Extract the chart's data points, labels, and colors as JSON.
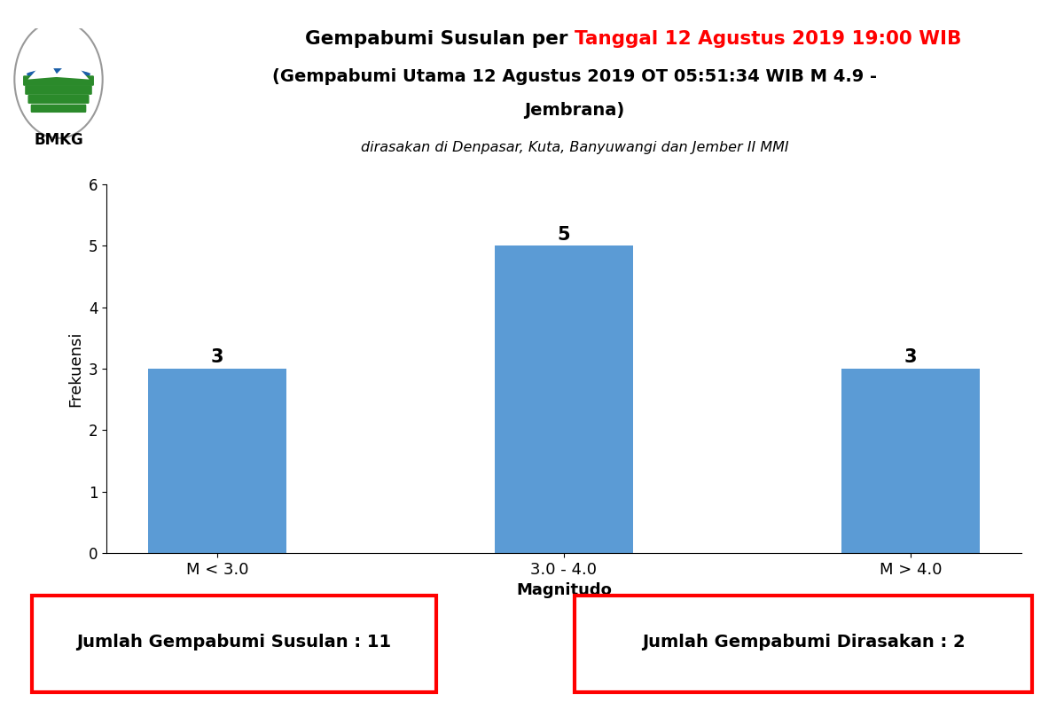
{
  "title_black": "Gempabumi Susulan per ",
  "title_red": "Tanggal 12 Agustus 2019 19:00 WIB",
  "subtitle1": "(Gempabumi Utama 12 Agustus 2019 OT 05:51:34 WIB M 4.9 -",
  "subtitle2": "Jembrana)",
  "subtitle3": "dirasakan di Denpasar, Kuta, Banyuwangi dan Jember II MMI",
  "categories": [
    "M < 3.0",
    "3.0 - 4.0",
    "M > 4.0"
  ],
  "values": [
    3,
    5,
    3
  ],
  "bar_color": "#5B9BD5",
  "ylabel": "Frekuensi",
  "xlabel": "Magnitudo",
  "ylim": [
    0,
    6
  ],
  "yticks": [
    0,
    1,
    2,
    3,
    4,
    5,
    6
  ],
  "box1_text": "Jumlah Gempabumi Susulan : 11",
  "box2_text": "Jumlah Gempabumi Dirasakan : 2",
  "box_border_color": "red",
  "background_color": "white",
  "logo_blue": "#1A5EA8",
  "logo_green": "#2B8A2B",
  "logo_circle_edge": "#999999"
}
